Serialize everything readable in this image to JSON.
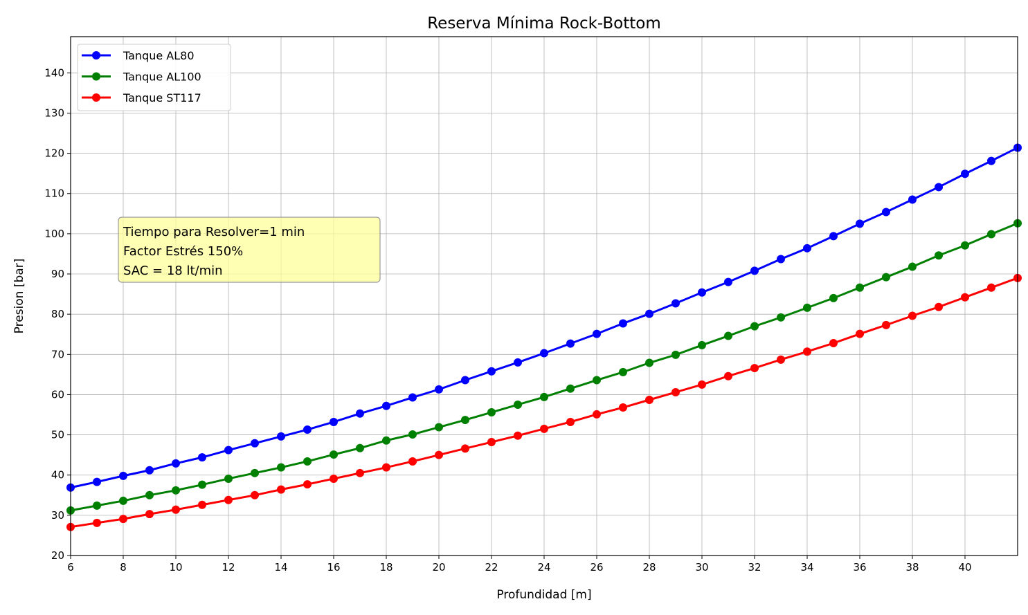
{
  "chart_data": {
    "type": "line",
    "title": "Reserva Mínima Rock-Bottom",
    "xlabel": "Profundidad [m]",
    "ylabel": "Presion [bar]",
    "xlim": [
      6,
      42
    ],
    "ylim": [
      20,
      149
    ],
    "xticks": [
      6,
      8,
      10,
      12,
      14,
      16,
      18,
      20,
      22,
      24,
      26,
      28,
      30,
      32,
      34,
      36,
      38,
      40
    ],
    "yticks": [
      20,
      30,
      40,
      50,
      60,
      70,
      80,
      90,
      100,
      110,
      120,
      130,
      140
    ],
    "grid": true,
    "legend_position": "top-left",
    "x": [
      6,
      7,
      8,
      9,
      10,
      11,
      12,
      13,
      14,
      15,
      16,
      17,
      18,
      19,
      20,
      21,
      22,
      23,
      24,
      25,
      26,
      27,
      28,
      29,
      30,
      31,
      32,
      33,
      34,
      35,
      36,
      37,
      38,
      39,
      40,
      41,
      42
    ],
    "series": [
      {
        "name": "Tanque AL80",
        "color": "#0000ff",
        "values": [
          36.9,
          38.3,
          39.8,
          41.2,
          42.9,
          44.4,
          46.2,
          47.9,
          49.6,
          51.3,
          53.2,
          55.3,
          57.2,
          59.3,
          61.3,
          63.6,
          65.8,
          68.0,
          70.3,
          72.7,
          75.1,
          77.7,
          80.1,
          82.7,
          85.4,
          88.0,
          90.8,
          93.7,
          96.4,
          99.4,
          102.5,
          105.4,
          108.5,
          111.6,
          114.9,
          118.1,
          121.4
        ]
      },
      {
        "name": "Tanque AL100",
        "color": "#008000",
        "values": [
          31.2,
          32.4,
          33.6,
          35.0,
          36.2,
          37.6,
          39.1,
          40.5,
          41.9,
          43.4,
          45.1,
          46.7,
          48.6,
          50.1,
          51.9,
          53.7,
          55.6,
          57.5,
          59.4,
          61.5,
          63.6,
          65.6,
          67.9,
          69.9,
          72.3,
          74.6,
          77.0,
          79.2,
          81.6,
          84.0,
          86.6,
          89.2,
          91.8,
          94.6,
          97.1,
          99.9,
          102.6
        ]
      },
      {
        "name": "Tanque ST117",
        "color": "#ff0000",
        "values": [
          27.1,
          28.1,
          29.1,
          30.3,
          31.4,
          32.6,
          33.8,
          35.0,
          36.4,
          37.7,
          39.1,
          40.5,
          41.9,
          43.4,
          45.0,
          46.6,
          48.2,
          49.8,
          51.5,
          53.2,
          55.1,
          56.8,
          58.7,
          60.6,
          62.5,
          64.6,
          66.6,
          68.7,
          70.7,
          72.8,
          75.1,
          77.3,
          79.6,
          81.8,
          84.2,
          86.6,
          89.0
        ]
      }
    ],
    "annotation": {
      "lines": [
        "Tiempo para Resolver=1 min",
        "Factor Estrés 150%",
        "SAC = 18 lt/min"
      ],
      "box_color": "#ffff99"
    }
  }
}
